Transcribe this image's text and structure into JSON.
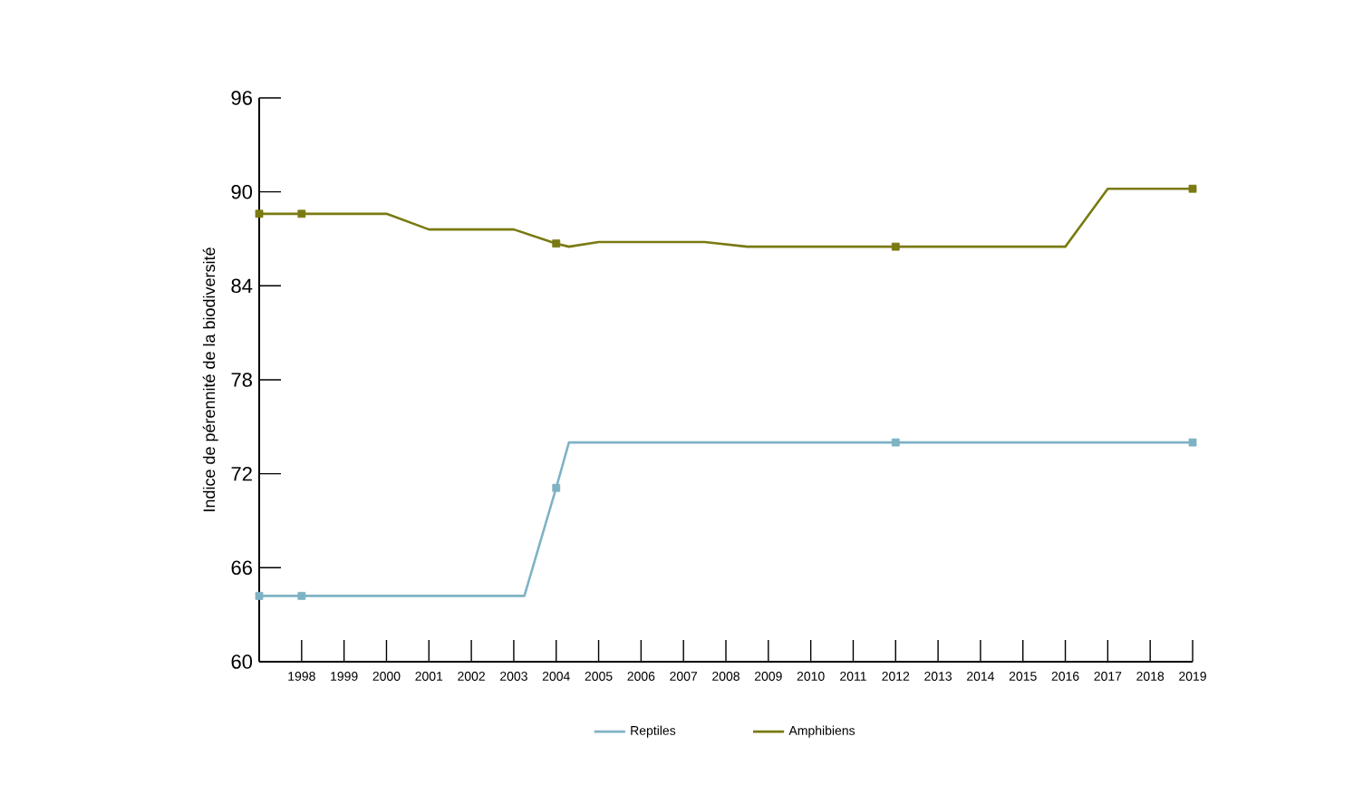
{
  "chart_data": {
    "type": "line",
    "ylabel": "Indice de pérennité de la biodiversité",
    "xlim": [
      1997,
      2019
    ],
    "ylim": [
      60,
      96
    ],
    "xticks": [
      1998,
      1999,
      2000,
      2001,
      2002,
      2003,
      2004,
      2005,
      2006,
      2007,
      2008,
      2009,
      2010,
      2011,
      2012,
      2013,
      2014,
      2015,
      2016,
      2017,
      2018,
      2019
    ],
    "yticks": [
      60,
      66,
      72,
      78,
      84,
      90,
      96
    ],
    "grid": false,
    "legend": "bottom",
    "line_style": "solid",
    "series": [
      {
        "name": "Reptiles",
        "color": "#7fb2c5",
        "marker": "none",
        "x": [
          1997,
          1998,
          2003.25,
          2004,
          2004.3,
          2012,
          2019
        ],
        "values": [
          64.2,
          64.2,
          64.2,
          71.1,
          74.0,
          74.0,
          74.0
        ]
      },
      {
        "name": "Amphibiens",
        "color": "#7a7a12",
        "marker": "none",
        "x": [
          1997,
          2000,
          2001,
          2003,
          2004,
          2004.3,
          2005,
          2007.5,
          2008.5,
          2016,
          2017,
          2019
        ],
        "values": [
          88.6,
          88.6,
          87.6,
          87.6,
          86.7,
          86.5,
          86.8,
          86.8,
          86.5,
          86.5,
          90.2,
          90.2
        ]
      },
      {
        "type": "scatter",
        "color": "#7fb2c5",
        "marker": "square",
        "x": [
          1997,
          1998,
          2004,
          2012,
          2019
        ],
        "values": [
          64.2,
          64.2,
          71.1,
          74.0,
          74.0
        ]
      },
      {
        "type": "scatter",
        "color": "#7a7a12",
        "marker": "square",
        "x": [
          1997,
          1998,
          2004,
          2012,
          2019
        ],
        "values": [
          88.6,
          88.6,
          86.7,
          86.5,
          90.2
        ]
      }
    ]
  }
}
